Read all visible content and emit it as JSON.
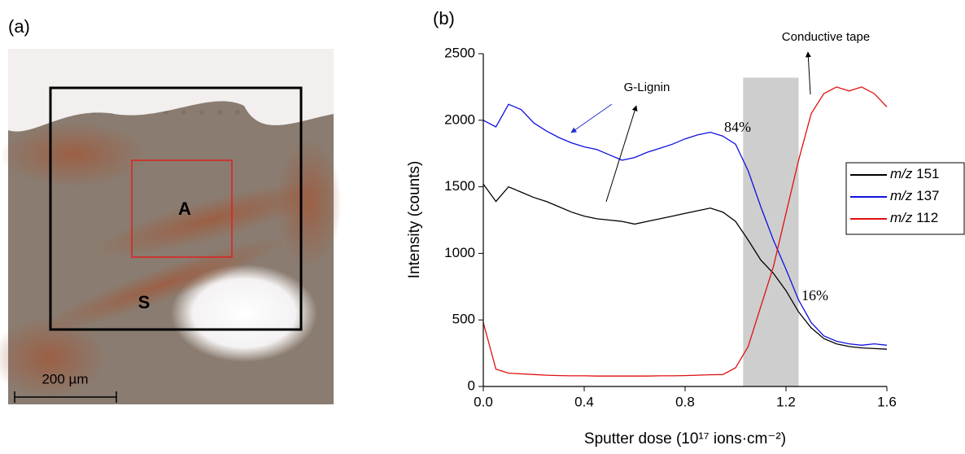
{
  "panel_a": {
    "label": "(a)",
    "regions": [
      "A",
      "S"
    ],
    "scale_bar": "200 µm"
  },
  "chart_data": {
    "type": "line",
    "title": "(b)",
    "x_label": "Sputter dose (10¹⁷ ions·cm⁻²)",
    "y_label": "Intensity (counts)",
    "x": [
      0,
      0.05,
      0.1,
      0.15,
      0.2,
      0.25,
      0.3,
      0.35,
      0.4,
      0.45,
      0.5,
      0.55,
      0.6,
      0.65,
      0.7,
      0.75,
      0.8,
      0.85,
      0.9,
      0.95,
      1.0,
      1.05,
      1.1,
      1.15,
      1.2,
      1.25,
      1.3,
      1.35,
      1.4,
      1.45,
      1.5,
      1.55,
      1.6
    ],
    "series": [
      {
        "name": "m/z 151",
        "color": "#000000",
        "values": [
          1520,
          1390,
          1500,
          1460,
          1420,
          1390,
          1350,
          1310,
          1280,
          1260,
          1250,
          1240,
          1220,
          1240,
          1260,
          1280,
          1300,
          1320,
          1340,
          1310,
          1240,
          1100,
          950,
          850,
          720,
          560,
          440,
          360,
          320,
          300,
          290,
          285,
          280
        ]
      },
      {
        "name": "m/z 137",
        "color": "#1010e0",
        "values": [
          2000,
          1950,
          2120,
          2080,
          1980,
          1920,
          1870,
          1830,
          1800,
          1780,
          1740,
          1700,
          1720,
          1760,
          1790,
          1820,
          1860,
          1890,
          1910,
          1880,
          1820,
          1620,
          1350,
          1100,
          880,
          650,
          480,
          380,
          340,
          320,
          310,
          320,
          310
        ]
      },
      {
        "name": "m/z 112",
        "color": "#e01010",
        "values": [
          480,
          130,
          100,
          95,
          90,
          85,
          82,
          80,
          80,
          78,
          78,
          78,
          78,
          78,
          80,
          80,
          82,
          85,
          88,
          90,
          140,
          300,
          600,
          900,
          1300,
          1700,
          2050,
          2200,
          2250,
          2220,
          2250,
          2200,
          2100
        ]
      }
    ],
    "shaded_region": {
      "x": [
        1.03,
        1.25
      ],
      "y": [
        0,
        2320
      ],
      "color": "#bdbdbd"
    },
    "annotations": [
      "84%",
      "16%",
      "G-Lignin",
      "Conductive tape"
    ],
    "xlim": [
      0,
      1.6
    ],
    "ylim": [
      0,
      2500
    ],
    "xticks": [
      {
        "value": 0,
        "label": "0.0"
      },
      0.4,
      0.8,
      1.2,
      1.6
    ],
    "yticks": [
      0,
      500,
      1000,
      1500,
      2000,
      2500
    ],
    "grid": false,
    "legend": "right"
  }
}
